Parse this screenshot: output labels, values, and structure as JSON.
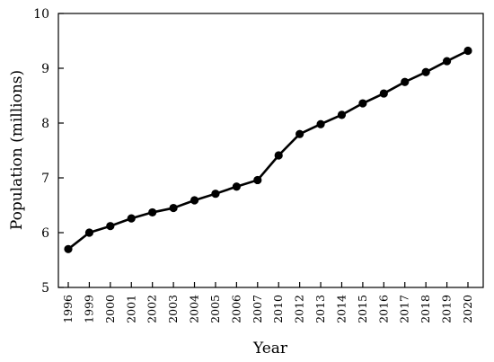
{
  "chart_data": {
    "type": "line",
    "xlabel": "Year",
    "ylabel": "Population (millions)",
    "ylim": [
      5,
      10
    ],
    "yticks": [
      5,
      6,
      7,
      8,
      9,
      10
    ],
    "grid": false,
    "categories": [
      "1996",
      "1999",
      "2000",
      "2001",
      "2002",
      "2003",
      "2004",
      "2005",
      "2006",
      "2007",
      "2010",
      "2012",
      "2013",
      "2014",
      "2015",
      "2016",
      "2017",
      "2018",
      "2019",
      "2020"
    ],
    "series": [
      {
        "values": [
          5.7,
          6.0,
          6.12,
          6.26,
          6.37,
          6.45,
          6.59,
          6.71,
          6.84,
          6.96,
          7.41,
          7.8,
          7.98,
          8.15,
          8.36,
          8.54,
          8.75,
          8.93,
          9.13,
          9.32
        ],
        "color": "#000000",
        "marker": "circle"
      }
    ]
  }
}
